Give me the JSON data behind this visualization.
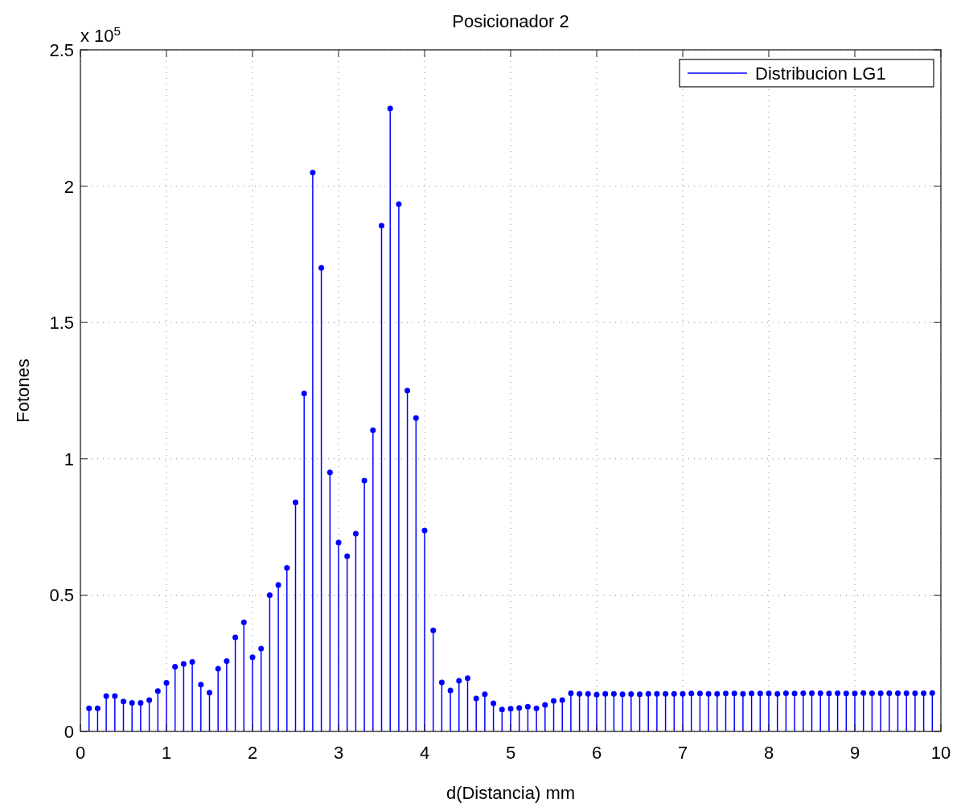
{
  "chart_data": {
    "type": "lollipop",
    "title": "Posicionador 2",
    "xlabel": "d(Distancia) mm",
    "ylabel": "Fotones",
    "annotations": [
      "x 10$^{5}$"
    ],
    "x": [
      0.1,
      0.2,
      0.3,
      0.4,
      0.5,
      0.6,
      0.7,
      0.8,
      0.9,
      1.0,
      1.1,
      1.2,
      1.3,
      1.4,
      1.5,
      1.6,
      1.7,
      1.8,
      1.9,
      2.0,
      2.1,
      2.2,
      2.3,
      2.4,
      2.5,
      2.6,
      2.7,
      2.8,
      2.9,
      3.0,
      3.1,
      3.2,
      3.3,
      3.4,
      3.5,
      3.6,
      3.7,
      3.8,
      3.9,
      4.0,
      4.1,
      4.2,
      4.3,
      4.4,
      4.5,
      4.6,
      4.7,
      4.8,
      4.9,
      5.0,
      5.1,
      5.2,
      5.3,
      5.4,
      5.5,
      5.6,
      5.7,
      5.8,
      5.9,
      6.0,
      6.1,
      6.2,
      6.3,
      6.4,
      6.5,
      6.6,
      6.7,
      6.8,
      6.9,
      7.0,
      7.1,
      7.2,
      7.3,
      7.4,
      7.5,
      7.6,
      7.7,
      7.8,
      7.9,
      8.0,
      8.1,
      8.2,
      8.3,
      8.4,
      8.5,
      8.6,
      8.7,
      8.8,
      8.9,
      9.0,
      9.1,
      9.2,
      9.3,
      9.4,
      9.5,
      9.6,
      9.7,
      9.8,
      9.9
    ],
    "series": [
      {
        "name": "Distribucion LG1",
        "color": "#0000ff",
        "values": [
          0.085,
          0.085,
          0.13,
          0.13,
          0.11,
          0.105,
          0.105,
          0.115,
          0.148,
          0.178,
          0.237,
          0.248,
          0.255,
          0.172,
          0.142,
          0.23,
          0.258,
          0.345,
          0.4,
          0.272,
          0.304,
          0.5,
          0.537,
          0.6,
          0.84,
          1.24,
          2.05,
          1.7,
          0.95,
          0.693,
          0.643,
          0.725,
          0.92,
          1.105,
          1.855,
          2.285,
          1.934,
          1.25,
          1.15,
          0.737,
          0.371,
          0.18,
          0.15,
          0.186,
          0.195,
          0.121,
          0.136,
          0.103,
          0.08,
          0.083,
          0.086,
          0.091,
          0.085,
          0.097,
          0.112,
          0.115,
          0.14,
          0.138,
          0.138,
          0.135,
          0.138,
          0.138,
          0.136,
          0.137,
          0.136,
          0.138,
          0.138,
          0.138,
          0.138,
          0.138,
          0.139,
          0.139,
          0.138,
          0.138,
          0.139,
          0.139,
          0.138,
          0.139,
          0.139,
          0.139,
          0.138,
          0.14,
          0.139,
          0.14,
          0.14,
          0.14,
          0.139,
          0.14,
          0.139,
          0.139,
          0.141,
          0.14,
          0.14,
          0.14,
          0.14,
          0.14,
          0.14,
          0.14,
          0.141
        ]
      }
    ],
    "xlim": [
      0,
      10
    ],
    "xticks": [
      0,
      1,
      2,
      3,
      4,
      5,
      6,
      7,
      8,
      9,
      10
    ],
    "ylim": [
      0,
      2.5
    ],
    "yticks": [
      0,
      0.5,
      1,
      1.5,
      2,
      2.5
    ],
    "grid": true,
    "legend": "top right",
    "marker": "circle",
    "line_style": "solid"
  }
}
